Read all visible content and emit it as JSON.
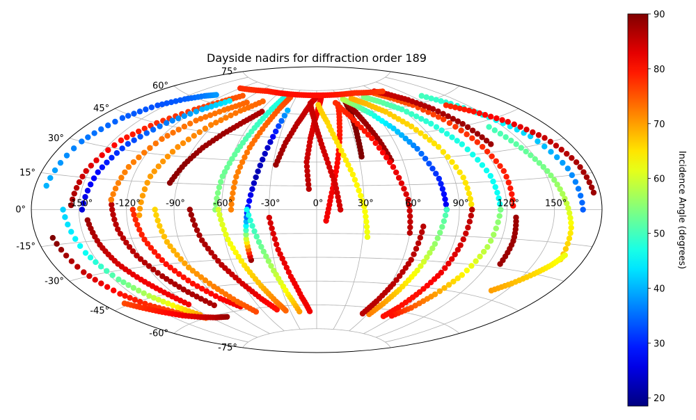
{
  "chart_data": {
    "type": "scatter",
    "projection": "aitoff",
    "title": "Dayside nadirs for diffraction order 189",
    "xlabel": "",
    "ylabel": "",
    "x_unit": "degrees longitude",
    "y_unit": "degrees latitude",
    "xlim": [
      -180,
      180
    ],
    "ylim": [
      -90,
      90
    ],
    "grid": true,
    "x_ticks": [
      -150,
      -120,
      -90,
      -60,
      -30,
      0,
      30,
      60,
      90,
      120,
      150
    ],
    "x_tick_labels": [
      "-150°",
      "-120°",
      "-90°",
      "-60°",
      "-30°",
      "0°",
      "30°",
      "60°",
      "90°",
      "120°",
      "150°"
    ],
    "y_ticks": [
      75,
      60,
      45,
      30,
      15,
      0,
      -15,
      -30,
      -45,
      -60,
      -75
    ],
    "y_tick_labels": [
      "75°",
      "60°",
      "45°",
      "30°",
      "15°",
      "0°",
      "-15°",
      "-30°",
      "-45°",
      "-60°",
      "-75°"
    ],
    "colorbar": {
      "label": "Incidence Angle (degrees)",
      "colormap": "jet",
      "range": [
        18.5,
        90
      ],
      "ticks": [
        20,
        30,
        40,
        50,
        60,
        70,
        80,
        90
      ]
    },
    "series": [
      {
        "x": [
          -170,
          -165,
          -158,
          -150,
          -140,
          -132,
          -125
        ],
        "y": [
          -12,
          -28,
          -40,
          -48,
          -54,
          -57,
          -60
        ],
        "c": [
          90,
          85,
          80,
          78,
          76,
          75,
          74
        ]
      },
      {
        "x": [
          -173,
          -170,
          -164,
          -156,
          -146,
          -136,
          -128
        ],
        "y": [
          10,
          30,
          43,
          52,
          58,
          62,
          64
        ],
        "c": [
          40,
          36,
          34,
          33,
          34,
          36,
          38
        ]
      },
      {
        "x": [
          -160,
          -154,
          -147,
          -140,
          -132,
          -125
        ],
        "y": [
          0,
          -20,
          -34,
          -44,
          -52,
          -58
        ],
        "c": [
          42,
          46,
          52,
          58,
          64,
          70
        ]
      },
      {
        "x": [
          -155,
          -152,
          -145,
          -135,
          -122,
          -110,
          -100
        ],
        "y": [
          2,
          18,
          34,
          45,
          55,
          62,
          67
        ],
        "c": [
          88,
          84,
          80,
          78,
          77,
          76,
          75
        ]
      },
      {
        "x": [
          -145,
          -142,
          -138,
          -132,
          -126,
          -120
        ],
        "y": [
          -5,
          -17,
          -27,
          -36,
          -44,
          -52
        ],
        "c": [
          88,
          86,
          84,
          82,
          82,
          82
        ]
      },
      {
        "x": [
          -148,
          -144,
          -138,
          -128,
          -116,
          -104
        ],
        "y": [
          0,
          18,
          33,
          46,
          56,
          63
        ],
        "c": [
          25,
          28,
          32,
          36,
          40,
          44
        ]
      },
      {
        "x": [
          -130,
          -127,
          -122,
          -115,
          -108,
          -100
        ],
        "y": [
          5,
          -10,
          -24,
          -36,
          -46,
          -55
        ],
        "c": [
          86,
          86,
          86,
          87,
          87,
          87
        ]
      },
      {
        "x": [
          -130,
          -126,
          -118,
          -108,
          -96,
          -84
        ],
        "y": [
          5,
          22,
          38,
          50,
          58,
          64
        ],
        "c": [
          72,
          72,
          73,
          73,
          73,
          74
        ]
      },
      {
        "x": [
          -116,
          -112,
          -106,
          -98,
          -88,
          -78
        ],
        "y": [
          0,
          -16,
          -30,
          -42,
          -52,
          -58
        ],
        "c": [
          78,
          79,
          80,
          80,
          81,
          82
        ]
      },
      {
        "x": [
          -112,
          -109,
          -102,
          -92,
          -80,
          -68
        ],
        "y": [
          -3,
          18,
          35,
          49,
          59,
          66
        ],
        "c": [
          70,
          70,
          71,
          72,
          73,
          74
        ]
      },
      {
        "x": [
          -102,
          -98,
          -92,
          -84,
          -76,
          -68
        ],
        "y": [
          0,
          -18,
          -33,
          -45,
          -55,
          -62
        ],
        "c": [
          66,
          68,
          70,
          72,
          74,
          76
        ]
      },
      {
        "x": [
          -95,
          -90,
          -84,
          -76,
          -67,
          -58
        ],
        "y": [
          15,
          26,
          36,
          45,
          53,
          60
        ],
        "c": [
          89,
          89,
          88,
          88,
          87,
          87
        ]
      },
      {
        "x": [
          -80,
          -75,
          -68,
          -60,
          -52,
          -44
        ],
        "y": [
          0,
          -18,
          -33,
          -45,
          -55,
          -62
        ],
        "c": [
          88,
          87,
          86,
          84,
          82,
          80
        ]
      },
      {
        "x": [
          -64,
          -62,
          -58,
          -54,
          -50,
          -46
        ],
        "y": [
          0,
          20,
          36,
          50,
          62,
          70
        ],
        "c": [
          55,
          53,
          52,
          50,
          48,
          47
        ]
      },
      {
        "x": [
          -62,
          -58,
          -52,
          -46,
          -40,
          -35
        ],
        "y": [
          0,
          -18,
          -34,
          -47,
          -57,
          -63
        ],
        "c": [
          60,
          62,
          65,
          68,
          72,
          74
        ]
      },
      {
        "x": [
          -54,
          -53,
          -50,
          -46,
          -42,
          -38
        ],
        "y": [
          0,
          20,
          38,
          52,
          63,
          70
        ],
        "c": [
          72,
          72,
          73,
          74,
          75,
          76
        ]
      },
      {
        "x": [
          -46,
          -46,
          -44,
          -40,
          -36,
          -32
        ],
        "y": [
          -31,
          -18,
          -2,
          20,
          42,
          62
        ],
        "c": [
          88,
          60,
          30,
          22,
          24,
          40
        ]
      },
      {
        "x": [
          -28,
          -24,
          -18,
          -12,
          -6,
          0
        ],
        "y": [
          28,
          42,
          54,
          62,
          68,
          71
        ],
        "c": [
          88,
          87,
          86,
          85,
          84,
          84
        ]
      },
      {
        "x": [
          -44,
          -38,
          -32,
          -26,
          -20
        ],
        "y": [
          0,
          -20,
          -38,
          -53,
          -64
        ],
        "c": [
          46,
          52,
          58,
          64,
          70
        ]
      },
      {
        "x": [
          -30,
          -26,
          -20,
          -14,
          -8
        ],
        "y": [
          -5,
          -25,
          -42,
          -55,
          -64
        ],
        "c": [
          84,
          83,
          82,
          82,
          82
        ]
      },
      {
        "x": [
          -5,
          -7,
          -5,
          -2,
          2,
          6
        ],
        "y": [
          13,
          30,
          45,
          56,
          64,
          70
        ],
        "c": [
          86,
          85,
          84,
          83,
          82,
          82
        ]
      },
      {
        "x": [
          6,
          9,
          13,
          17,
          21,
          26
        ],
        "y": [
          -7,
          8,
          24,
          40,
          54,
          66
        ],
        "c": [
          82,
          82,
          81,
          80,
          79,
          79
        ]
      },
      {
        "x": [
          15,
          12,
          7,
          2,
          -3,
          -8
        ],
        "y": [
          0,
          16,
          32,
          46,
          58,
          67
        ],
        "c": [
          84,
          84,
          84,
          85,
          85,
          85
        ]
      },
      {
        "x": [
          33,
          30,
          24,
          17,
          10,
          2
        ],
        "y": [
          -17,
          2,
          22,
          40,
          55,
          66
        ],
        "c": [
          62,
          63,
          64,
          65,
          66,
          67
        ]
      },
      {
        "x": [
          32,
          33,
          35,
          37
        ],
        "y": [
          33,
          45,
          57,
          67
        ],
        "c": [
          90,
          90,
          90,
          90
        ]
      },
      {
        "x": [
          52,
          49,
          45,
          41,
          38
        ],
        "y": [
          30,
          42,
          53,
          62,
          68
        ],
        "c": [
          88,
          88,
          88,
          88,
          88
        ]
      },
      {
        "x": [
          60,
          58,
          52,
          44,
          34,
          24
        ],
        "y": [
          -14,
          6,
          26,
          44,
          58,
          67
        ],
        "c": [
          86,
          84,
          82,
          80,
          79,
          78
        ]
      },
      {
        "x": [
          82,
          80,
          74,
          66,
          56,
          46,
          36
        ],
        "y": [
          0,
          18,
          36,
          49,
          59,
          65,
          69
        ],
        "c": [
          26,
          30,
          36,
          42,
          48,
          54,
          58
        ]
      },
      {
        "x": [
          82,
          78,
          74,
          70,
          66,
          62
        ],
        "y": [
          0,
          -20,
          -36,
          -48,
          -57,
          -64
        ],
        "c": [
          50,
          56,
          62,
          66,
          70,
          72
        ]
      },
      {
        "x": [
          68,
          66,
          62,
          58,
          54
        ],
        "y": [
          -10,
          -30,
          -45,
          -56,
          -64
        ],
        "c": [
          86,
          86,
          86,
          86,
          86
        ]
      },
      {
        "x": [
          98,
          96,
          90,
          82,
          72,
          60,
          48
        ],
        "y": [
          0,
          18,
          36,
          49,
          59,
          65,
          69
        ],
        "c": [
          65,
          65,
          65,
          66,
          67,
          68,
          69
        ]
      },
      {
        "x": [
          98,
          95,
          92,
          88,
          84,
          80
        ],
        "y": [
          0,
          -20,
          -36,
          -48,
          -58,
          -64
        ],
        "c": [
          86,
          84,
          82,
          80,
          80,
          80
        ]
      },
      {
        "x": [
          116,
          114,
          108,
          100,
          90,
          78,
          66
        ],
        "y": [
          0,
          18,
          36,
          49,
          59,
          65,
          69
        ],
        "c": [
          46,
          46,
          47,
          48,
          50,
          52,
          54
        ]
      },
      {
        "x": [
          116,
          113,
          108,
          102,
          96,
          88
        ],
        "y": [
          0,
          -20,
          -36,
          -48,
          -57,
          -63
        ],
        "c": [
          54,
          58,
          64,
          70,
          75,
          80
        ]
      },
      {
        "x": [
          124,
          124,
          120,
          114,
          106,
          96,
          86
        ],
        "y": [
          2,
          20,
          36,
          50,
          60,
          66,
          70
        ],
        "c": [
          80,
          79,
          78,
          77,
          76,
          75,
          74
        ]
      },
      {
        "x": [
          128,
          128,
          126
        ],
        "y": [
          -28,
          -16,
          -4
        ],
        "c": [
          88,
          88,
          88
        ]
      },
      {
        "x": [
          128,
          124,
          118,
          110,
          100,
          90
        ],
        "y": [
          34,
          46,
          56,
          63,
          68,
          71
        ],
        "c": [
          88,
          88,
          87,
          86,
          85,
          84
        ]
      },
      {
        "x": [
          168,
          166,
          160,
          150,
          140,
          130
        ],
        "y": [
          0,
          18,
          34,
          46,
          56,
          63
        ],
        "c": [
          34,
          38,
          42,
          46,
          48,
          50
        ]
      },
      {
        "x": [
          165,
          162,
          157,
          152,
          146,
          140
        ],
        "y": [
          -22,
          -8,
          5,
          18,
          30,
          42
        ],
        "c": [
          68,
          64,
          58,
          54,
          52,
          50
        ]
      },
      {
        "x": [
          176,
          174,
          168,
          158,
          146,
          134
        ],
        "y": [
          7,
          20,
          32,
          42,
          50,
          56
        ],
        "c": [
          88,
          87,
          85,
          82,
          80,
          78
        ]
      },
      {
        "x": [
          140,
          148,
          156,
          162,
          166
        ],
        "y": [
          -41,
          -36,
          -30,
          -25,
          -20
        ],
        "c": [
          70,
          68,
          66,
          64,
          62
        ]
      },
      {
        "x": [
          -165,
          -158,
          -150,
          -140,
          -128,
          -116,
          -104
        ],
        "y": [
          -44,
          -48,
          -52,
          -56,
          -59,
          -61,
          -62
        ],
        "c": [
          76,
          78,
          80,
          82,
          84,
          86,
          88
        ]
      },
      {
        "x": [
          -120,
          -100,
          -80,
          -60,
          -40,
          -20,
          0,
          20,
          40,
          60,
          80,
          100
        ],
        "y": [
          70,
          71,
          72,
          72,
          72,
          72,
          72,
          72,
          72,
          72,
          71,
          70
        ],
        "c": [
          78,
          78,
          79,
          80,
          80,
          80,
          80,
          80,
          79,
          78,
          78,
          77
        ]
      }
    ]
  }
}
